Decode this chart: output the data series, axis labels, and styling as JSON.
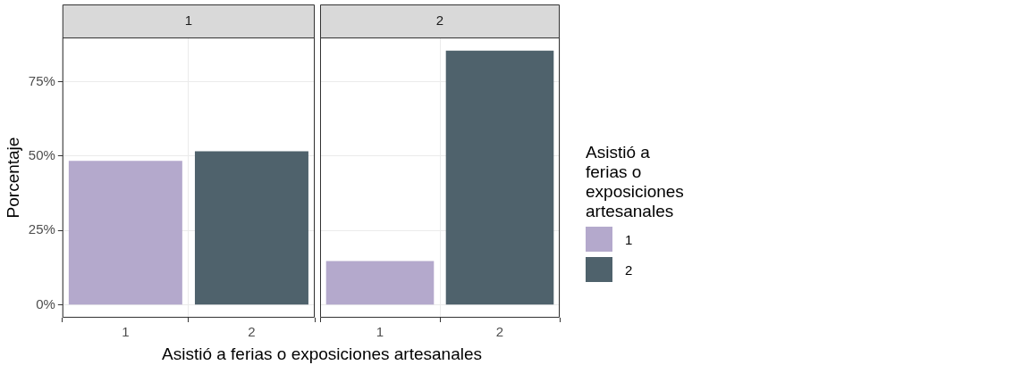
{
  "chart_data": [
    {
      "type": "bar",
      "title": "1",
      "ylabel": "Porcentaje",
      "xlabel": "Asistió a ferias o exposiciones artesanales",
      "legend_title": "Asistió a ferias o exposiciones artesanales",
      "categories": [
        "1",
        "2"
      ],
      "series": [
        {
          "name": "1",
          "color": "#b4a9cc",
          "values": [
            48.4,
            null
          ]
        },
        {
          "name": "2",
          "color": "#4f626c",
          "values": [
            null,
            51.6
          ]
        }
      ],
      "ylim": [
        -4.3,
        89.8
      ],
      "yticks": [
        {
          "value": 0,
          "label": "0%"
        },
        {
          "value": 25,
          "label": "25%"
        },
        {
          "value": 50,
          "label": "50%"
        },
        {
          "value": 75,
          "label": "75%"
        }
      ],
      "grid": true,
      "legend": "right"
    },
    {
      "type": "bar",
      "title": "2",
      "categories": [
        "1",
        "2"
      ],
      "series": [
        {
          "color": "#b4a9cc",
          "values": [
            14.7,
            null
          ]
        },
        {
          "color": "#4f626c",
          "values": [
            null,
            85.4
          ]
        }
      ],
      "ylim": [
        -4.3,
        89.8
      ],
      "yticks": [
        {
          "value": 0,
          "label": null
        },
        {
          "value": 25,
          "label": null
        },
        {
          "value": 50,
          "label": null
        },
        {
          "value": 75,
          "label": null
        }
      ],
      "grid": true,
      "tick_labels": "x"
    }
  ]
}
